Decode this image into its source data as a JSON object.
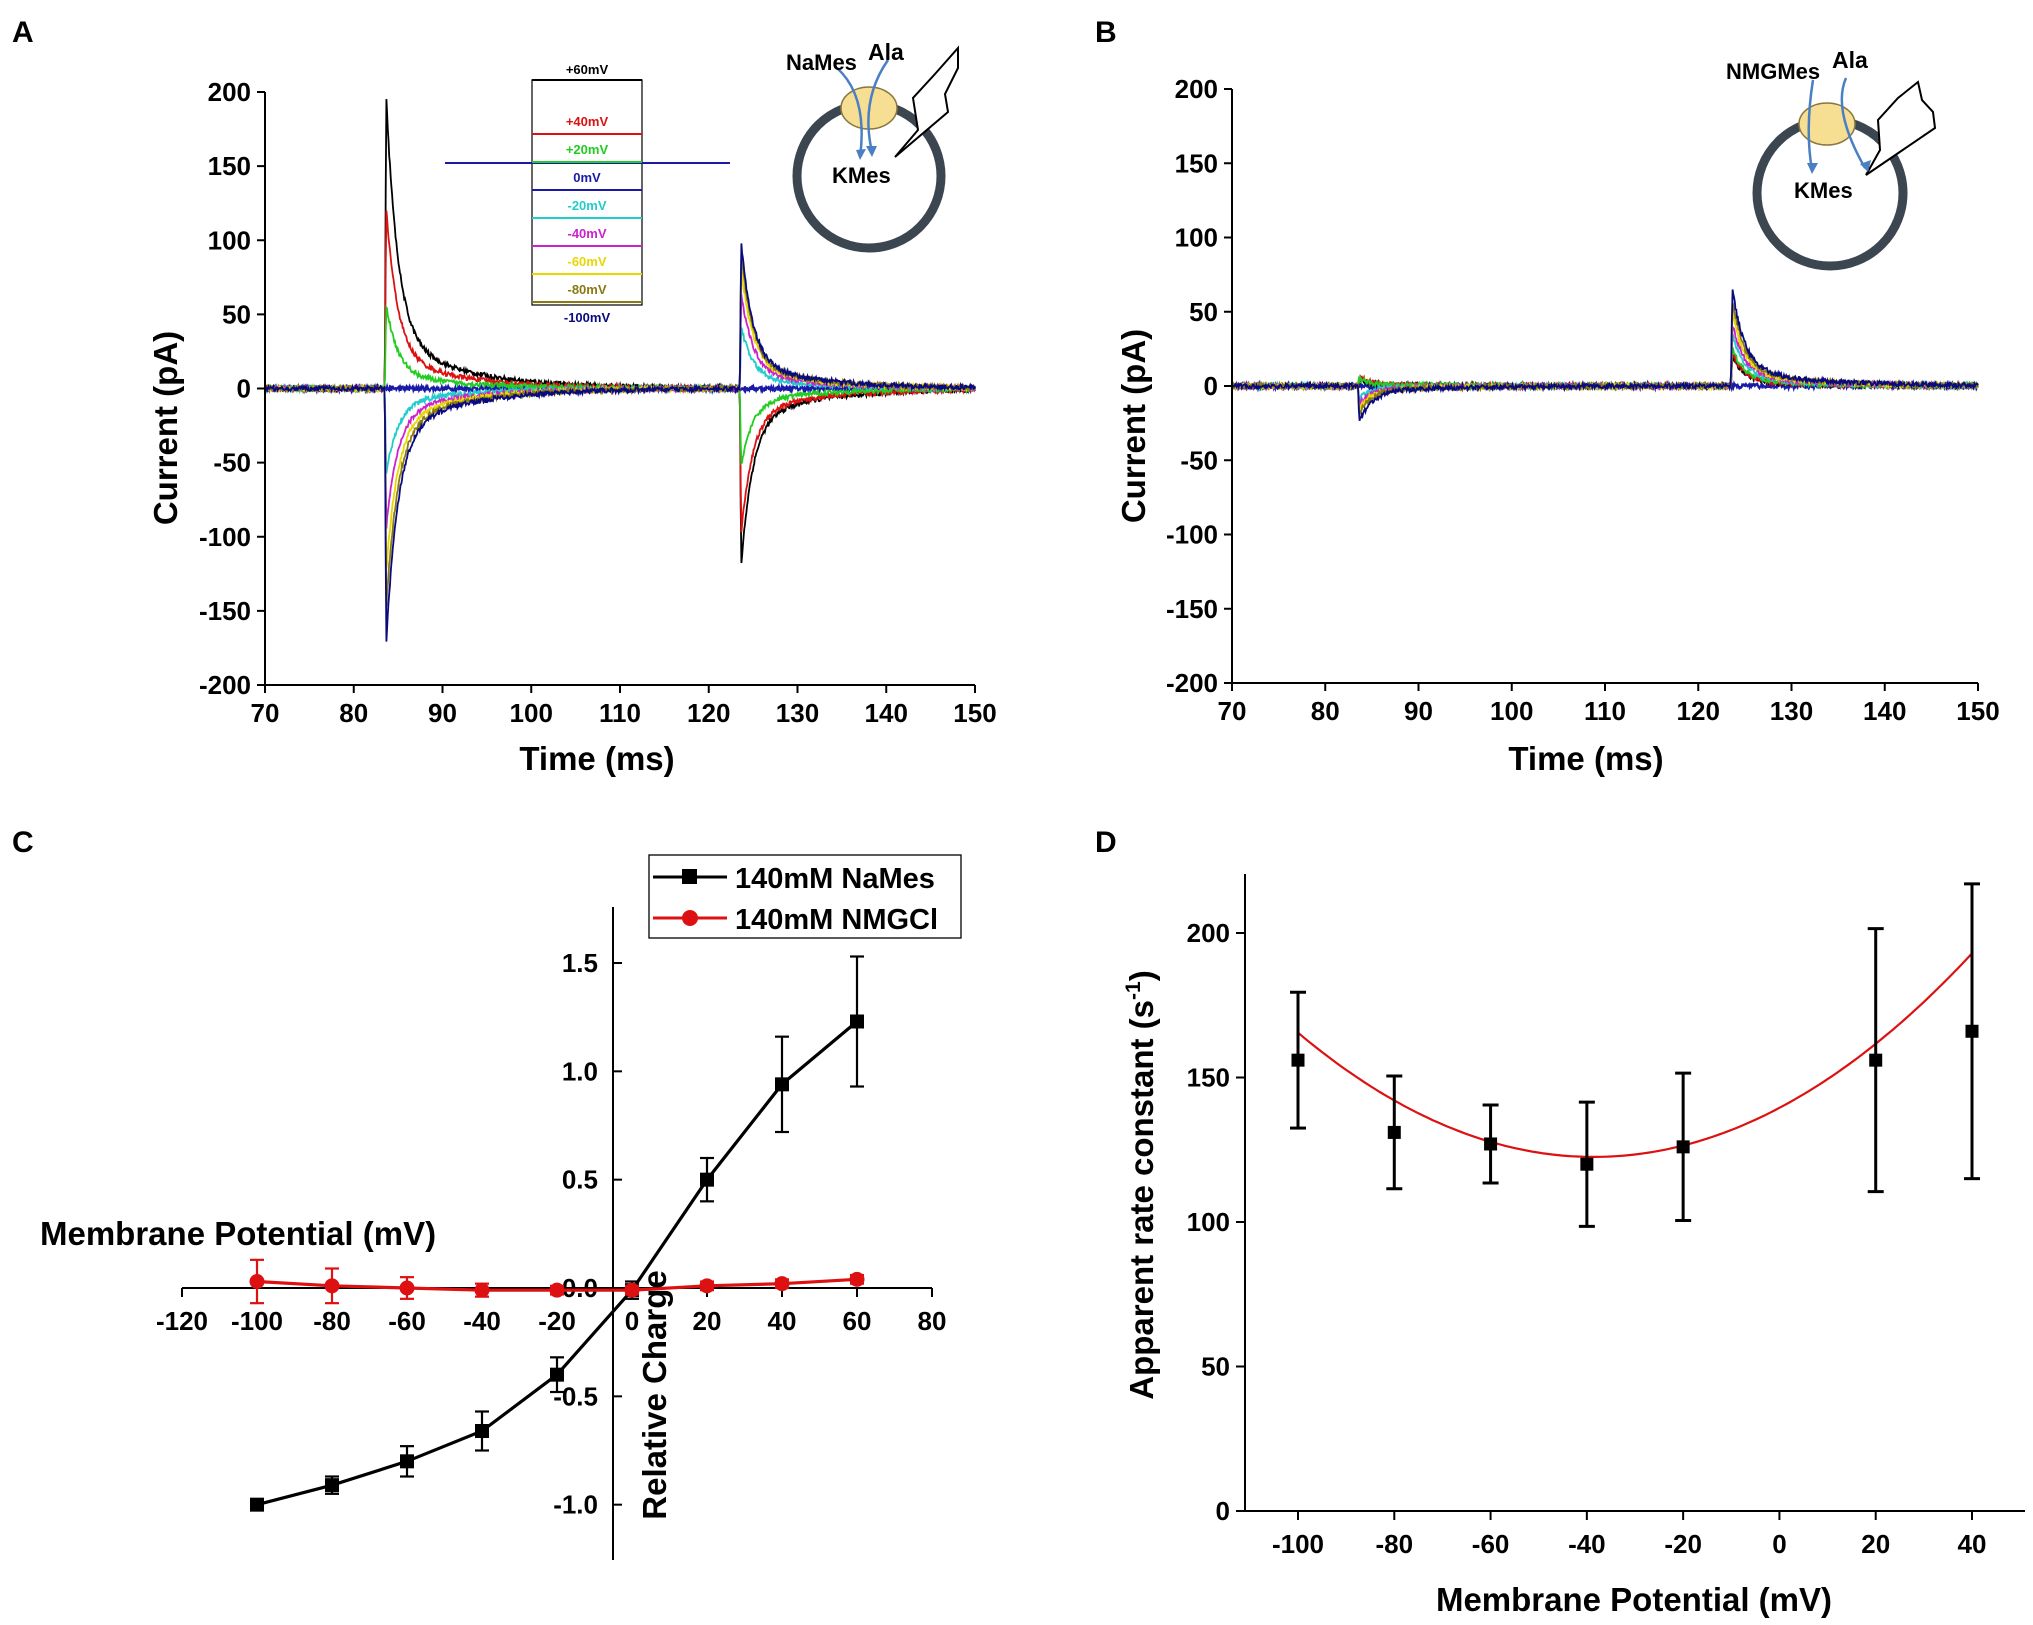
{
  "chart_data": [
    {
      "id": "A",
      "panel_label": "A",
      "type": "line",
      "xlabel": "Time (ms)",
      "ylabel": "Current (pA)",
      "xlim": [
        70,
        150
      ],
      "ylim": [
        -200,
        200
      ],
      "xticks": [
        70,
        80,
        90,
        100,
        110,
        120,
        130,
        140,
        150
      ],
      "yticks": [
        -200,
        -150,
        -100,
        -50,
        0,
        50,
        100,
        150,
        200
      ],
      "pulse_on_ms": 83.5,
      "pulse_off_ms": 123.5,
      "series": [
        {
          "name": "+60mV",
          "color": "#000000",
          "on_peak": 198,
          "off_peak": -120
        },
        {
          "name": "+40mV",
          "color": "#dd1111",
          "on_peak": 122,
          "off_peak": -98
        },
        {
          "name": "+20mV",
          "color": "#22cc22",
          "on_peak": 57,
          "off_peak": -52
        },
        {
          "name": "0mV",
          "color": "#1a1aa8",
          "on_peak": 0,
          "off_peak": 0
        },
        {
          "name": "-20mV",
          "color": "#22cccc",
          "on_peak": -58,
          "off_peak": 42
        },
        {
          "name": "-40mV",
          "color": "#cc22cc",
          "on_peak": -95,
          "off_peak": 65
        },
        {
          "name": "-60mV",
          "color": "#e8d800",
          "on_peak": -125,
          "off_peak": 82
        },
        {
          "name": "-80mV",
          "color": "#8a7a10",
          "on_peak": -150,
          "off_peak": 92
        },
        {
          "name": "-100mV",
          "color": "#0a0a80",
          "on_peak": -173,
          "off_peak": 99
        }
      ],
      "protocol_labels": [
        "+60mV",
        "+40mV",
        "+20mV",
        "0mV",
        "-20mV",
        "-40mV",
        "-60mV",
        "-80mV",
        "-100mV"
      ],
      "schematic": {
        "outer_ion": "NaMes",
        "substrate": "Ala",
        "inner_ion": "KMes"
      }
    },
    {
      "id": "B",
      "panel_label": "B",
      "type": "line",
      "xlabel": "Time (ms)",
      "ylabel": "Current (pA)",
      "xlim": [
        70,
        150
      ],
      "ylim": [
        -200,
        200
      ],
      "xticks": [
        70,
        80,
        90,
        100,
        110,
        120,
        130,
        140,
        150
      ],
      "yticks": [
        -200,
        -150,
        -100,
        -50,
        0,
        50,
        100,
        150,
        200
      ],
      "pulse_on_ms": 83.5,
      "pulse_off_ms": 123.5,
      "series": [
        {
          "name": "+60mV",
          "color": "#000000",
          "on_peak": 4,
          "off_peak": 20
        },
        {
          "name": "+40mV",
          "color": "#dd1111",
          "on_peak": 6,
          "off_peak": 22
        },
        {
          "name": "+20mV",
          "color": "#22cc22",
          "on_peak": 5,
          "off_peak": 25
        },
        {
          "name": "0mV",
          "color": "#1a1aa8",
          "on_peak": 0,
          "off_peak": 0
        },
        {
          "name": "-20mV",
          "color": "#22cccc",
          "on_peak": -8,
          "off_peak": 35
        },
        {
          "name": "-40mV",
          "color": "#cc22cc",
          "on_peak": -12,
          "off_peak": 42
        },
        {
          "name": "-60mV",
          "color": "#e8d800",
          "on_peak": -15,
          "off_peak": 50
        },
        {
          "name": "-80mV",
          "color": "#8a7a10",
          "on_peak": -18,
          "off_peak": 58
        },
        {
          "name": "-100mV",
          "color": "#0a0a80",
          "on_peak": -24,
          "off_peak": 66
        }
      ],
      "schematic": {
        "outer_ion": "NMGMes",
        "substrate": "Ala",
        "inner_ion": "KMes"
      }
    },
    {
      "id": "C",
      "panel_label": "C",
      "type": "line",
      "xlabel": "Membrane Potential (mV)",
      "ylabel": "Relative Charge",
      "xlim": [
        -120,
        80
      ],
      "ylim": [
        -1.25,
        1.75
      ],
      "xticks": [
        -120,
        -100,
        -80,
        -60,
        -40,
        -20,
        0,
        20,
        40,
        60,
        80
      ],
      "yticks": [
        -1.0,
        -0.5,
        0.0,
        0.5,
        1.0,
        1.5
      ],
      "ytick_labels": [
        "-1.0",
        "-0.5",
        "0.0",
        "0.5",
        "1.0",
        "1.5"
      ],
      "x": [
        -100,
        -80,
        -60,
        -40,
        -20,
        0,
        20,
        40,
        60
      ],
      "series": [
        {
          "name": "140mM NaMes",
          "color": "#000000",
          "marker": "square",
          "values": [
            -1.0,
            -0.91,
            -0.8,
            -0.66,
            -0.4,
            -0.01,
            0.5,
            0.94,
            1.23
          ],
          "errors": [
            0.0,
            0.04,
            0.07,
            0.09,
            0.08,
            0.04,
            0.1,
            0.22,
            0.3
          ]
        },
        {
          "name": "140mM NMGCl",
          "color": "#dd1111",
          "marker": "circle",
          "values": [
            0.03,
            0.01,
            0.0,
            -0.01,
            -0.01,
            -0.01,
            0.01,
            0.02,
            0.04
          ],
          "errors": [
            0.1,
            0.08,
            0.05,
            0.03,
            0.02,
            0.02,
            0.02,
            0.02,
            0.02
          ]
        }
      ],
      "legend": "top-right"
    },
    {
      "id": "D",
      "panel_label": "D",
      "type": "scatter",
      "xlabel": "Membrane Potential (mV)",
      "ylabel_main": "Apparent  rate constant (s",
      "ylabel_sup": "-1",
      "ylabel_tail": ")",
      "xlim": [
        -112,
        48
      ],
      "ylim": [
        0,
        220
      ],
      "xticks": [
        -100,
        -80,
        -60,
        -40,
        -20,
        0,
        20,
        40
      ],
      "yticks": [
        0,
        50,
        100,
        150,
        200
      ],
      "x": [
        -100,
        -80,
        -60,
        -40,
        -20,
        20,
        40
      ],
      "values": [
        156,
        131,
        127,
        120,
        126,
        156,
        166
      ],
      "errors": [
        23.5,
        19.5,
        13.5,
        21.5,
        25.5,
        45.5,
        51
      ],
      "fit": {
        "type": "quadratic",
        "color": "#dd1111",
        "a": 0.0114,
        "b": 0.88,
        "c": 139.5,
        "x_range": [
          -100,
          40
        ]
      }
    }
  ]
}
